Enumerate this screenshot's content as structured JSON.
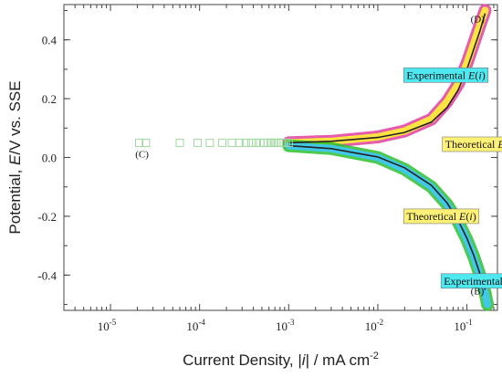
{
  "chart_data": {
    "type": "line",
    "xscale": "log",
    "xlim": [
      3e-06,
      0.22
    ],
    "ylim": [
      -0.52,
      0.52
    ],
    "xticks": [
      {
        "value": 1e-05,
        "base": "10",
        "exp": "-5"
      },
      {
        "value": 0.0001,
        "base": "10",
        "exp": "-4"
      },
      {
        "value": 0.001,
        "base": "10",
        "exp": "-3"
      },
      {
        "value": 0.01,
        "base": "10",
        "exp": "-2"
      },
      {
        "value": 0.1,
        "base": "10",
        "exp": "-1"
      }
    ],
    "yticks": [
      {
        "value": 0.4,
        "label": "0.4"
      },
      {
        "value": 0.2,
        "label": "0.2"
      },
      {
        "value": 0.0,
        "label": "0.0"
      },
      {
        "value": -0.2,
        "label": "-0.2"
      },
      {
        "value": -0.4,
        "label": "-0.4"
      }
    ],
    "xlabel": {
      "main": "Current Density, |",
      "var": "i",
      "rest": "| / mA cm",
      "sup": "-2"
    },
    "ylabel": {
      "main": "Potential, ",
      "var": "E",
      "rest": "/V vs. SSE"
    },
    "series": [
      {
        "key": "anodic-exp",
        "x": [
          0.001,
          0.003,
          0.01,
          0.02,
          0.04,
          0.06,
          0.08,
          0.1,
          0.12,
          0.14,
          0.16
        ],
        "y": [
          0.05,
          0.055,
          0.07,
          0.09,
          0.13,
          0.19,
          0.25,
          0.32,
          0.39,
          0.45,
          0.5
        ],
        "color": "#ffeb3b",
        "edge": "#e040a0"
      },
      {
        "key": "anodic-theo",
        "x": [
          0.001,
          0.003,
          0.01,
          0.02,
          0.04,
          0.06,
          0.08,
          0.1,
          0.12,
          0.14,
          0.16
        ],
        "y": [
          0.05,
          0.055,
          0.068,
          0.085,
          0.12,
          0.17,
          0.23,
          0.3,
          0.37,
          0.43,
          0.49
        ],
        "color": "#222222"
      },
      {
        "key": "cathodic-exp",
        "x": [
          0.001,
          0.003,
          0.01,
          0.02,
          0.04,
          0.06,
          0.08,
          0.1,
          0.12,
          0.14,
          0.16,
          0.17
        ],
        "y": [
          0.04,
          0.03,
          0.0,
          -0.04,
          -0.1,
          -0.16,
          -0.22,
          -0.28,
          -0.34,
          -0.4,
          -0.46,
          -0.5
        ],
        "color": "#40c8f0",
        "edge": "#2ec02e"
      },
      {
        "key": "cathodic-theo",
        "x": [
          0.001,
          0.003,
          0.01,
          0.02,
          0.04,
          0.06,
          0.08,
          0.1,
          0.12,
          0.14,
          0.16
        ],
        "y": [
          0.04,
          0.03,
          0.002,
          -0.035,
          -0.095,
          -0.155,
          -0.215,
          -0.275,
          -0.335,
          -0.395,
          -0.45
        ],
        "color": "#222222"
      }
    ],
    "ocp_points": {
      "x": [
        2.1e-05,
        2.5e-05,
        6e-05,
        9.5e-05,
        0.00013,
        0.00018,
        0.00023,
        0.00028,
        0.00033,
        0.00038,
        0.00043,
        0.00048,
        0.00053,
        0.00058,
        0.00063,
        0.00068,
        0.00073,
        0.00078,
        0.00083,
        0.00088,
        0.00093,
        0.001
      ],
      "y": 0.05
    },
    "annotations": [
      {
        "main": "Experimental ",
        "var": "E",
        "rest": "(",
        "var2": "i",
        "end": ")",
        "bg": "#4ee8f0",
        "x": 0.021,
        "y": 0.28
      },
      {
        "main": "Theoretical ",
        "var": "E",
        "rest": "(",
        "var2": "i",
        "end": ")",
        "bg": "#fff176",
        "x": 0.057,
        "y": 0.045
      },
      {
        "main": "Theoretical ",
        "var": "E",
        "rest": "(",
        "var2": "i",
        "end": ")",
        "bg": "#fff176",
        "x": 0.021,
        "y": -0.2
      },
      {
        "main": "Experimental ",
        "var": "E",
        "rest": "(",
        "var2": "i",
        "end": ")",
        "bg": "#4ee8f0",
        "x": 0.055,
        "y": -0.42
      }
    ],
    "point_labels": [
      {
        "text": "(D)",
        "x": 0.11,
        "y": 0.46
      },
      {
        "text": "(C)",
        "x": 1.9e-05,
        "y": 0.0
      },
      {
        "text": "(B)",
        "x": 0.11,
        "y": -0.465
      }
    ]
  }
}
